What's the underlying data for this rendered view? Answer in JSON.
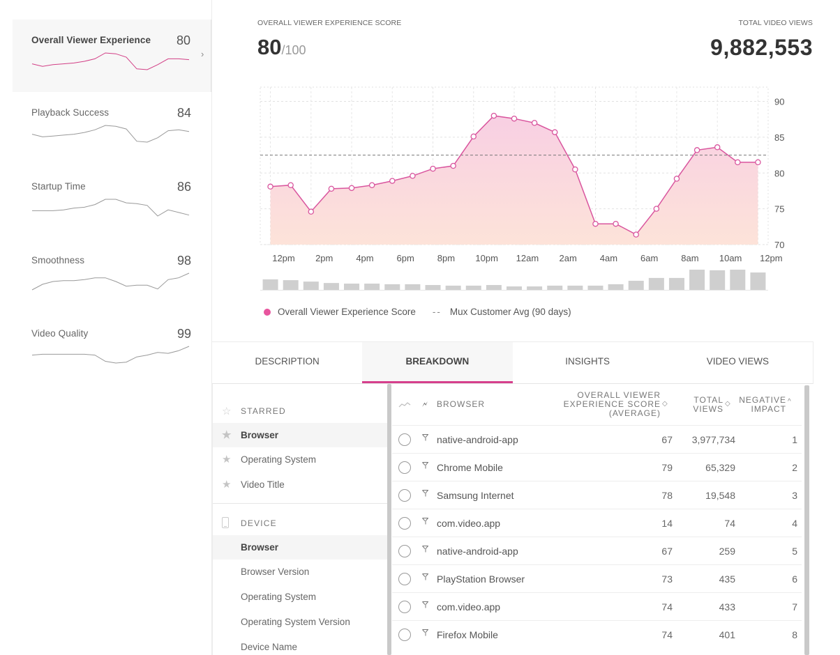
{
  "sidebar": {
    "metrics": [
      {
        "label": "Overall Viewer Experience",
        "value": "80",
        "active": true,
        "trend": [
          12,
          9,
          11,
          12,
          13,
          15,
          18,
          25,
          24,
          20,
          6,
          5,
          11,
          18,
          18,
          17
        ]
      },
      {
        "label": "Playback Success",
        "value": "84",
        "active": false,
        "trend": [
          14,
          11,
          12,
          13,
          14,
          16,
          19,
          24,
          23,
          20,
          6,
          5,
          10,
          18,
          19,
          17
        ]
      },
      {
        "label": "Startup Time",
        "value": "86",
        "active": false,
        "trend": [
          15,
          15,
          15,
          16,
          18,
          19,
          22,
          28,
          28,
          24,
          23,
          21,
          9,
          16,
          13,
          10
        ]
      },
      {
        "label": "Smoothness",
        "value": "98",
        "active": false,
        "trend": [
          4,
          10,
          13,
          14,
          14,
          15,
          17,
          17,
          13,
          8,
          9,
          9,
          5,
          15,
          17,
          22
        ]
      },
      {
        "label": "Video Quality",
        "value": "99",
        "active": false,
        "trend": [
          12,
          13,
          13,
          13,
          13,
          13,
          12,
          5,
          3,
          4,
          10,
          12,
          15,
          14,
          17,
          22
        ]
      }
    ],
    "chevron_icon": "chevron-right-icon"
  },
  "header": {
    "score_label": "OVERALL VIEWER EXPERIENCE SCORE",
    "score_value": "80",
    "score_max": "/100",
    "views_label": "TOTAL VIDEO VIEWS",
    "views_value": "9,882,553"
  },
  "colors": {
    "accent": "#d63f8c",
    "line": "#d9559e",
    "legend_dot": "#e8559e",
    "area_top": "#f8cfe3",
    "area_bottom": "#fde3d9",
    "bars": "#cfcfcf"
  },
  "chart_data": {
    "type": "area",
    "title": "Overall Viewer Experience Score",
    "xlabel": "",
    "ylabel": "",
    "ylim": [
      70,
      92
    ],
    "yticks": [
      70,
      75,
      80,
      85,
      90
    ],
    "x_tick_labels": [
      "12pm",
      "2pm",
      "4pm",
      "6pm",
      "8pm",
      "10pm",
      "12am",
      "2am",
      "4am",
      "6am",
      "8am",
      "10am",
      "12pm"
    ],
    "grid": true,
    "series": [
      {
        "name": "Overall Viewer Experience Score",
        "values": [
          78.1,
          78.3,
          74.6,
          77.8,
          77.9,
          78.3,
          78.9,
          79.6,
          80.6,
          81.0,
          85.1,
          88.0,
          87.6,
          87.0,
          85.7,
          80.5,
          72.9,
          72.9,
          71.4,
          75.0,
          79.2,
          83.2,
          83.6,
          81.5,
          81.5
        ]
      }
    ],
    "reference_line": {
      "name": "Mux Customer Avg (90 days)",
      "value": 82.5,
      "style": "dashed"
    },
    "views_volume_relative": [
      0.52,
      0.48,
      0.41,
      0.34,
      0.31,
      0.31,
      0.28,
      0.28,
      0.24,
      0.21,
      0.21,
      0.24,
      0.17,
      0.17,
      0.21,
      0.21,
      0.21,
      0.28,
      0.45,
      0.59,
      0.59,
      1.0,
      0.97,
      1.0,
      0.86
    ],
    "legend": [
      {
        "label": "Overall Viewer Experience Score",
        "marker": "dot"
      },
      {
        "label": "Mux Customer Avg (90 days)",
        "marker": "dash"
      }
    ],
    "legend_position": "bottom-left"
  },
  "legend": {
    "series_label": "Overall Viewer Experience Score",
    "dash_glyph": "--",
    "avg_label": "Mux Customer Avg (90 days)"
  },
  "tabs": [
    {
      "label": "DESCRIPTION",
      "active": false
    },
    {
      "label": "BREAKDOWN",
      "active": true
    },
    {
      "label": "INSIGHTS",
      "active": false
    },
    {
      "label": "VIDEO VIEWS",
      "active": false
    }
  ],
  "dimensions": {
    "starred_header": "STARRED",
    "starred_items": [
      {
        "label": "Browser",
        "selected": true
      },
      {
        "label": "Operating System",
        "selected": false
      },
      {
        "label": "Video Title",
        "selected": false
      }
    ],
    "device_header": "DEVICE",
    "device_items": [
      {
        "label": "Browser",
        "selected": true
      },
      {
        "label": "Browser Version",
        "selected": false
      },
      {
        "label": "Operating System",
        "selected": false
      },
      {
        "label": "Operating System Version",
        "selected": false
      },
      {
        "label": "Device Name",
        "selected": false
      }
    ]
  },
  "table": {
    "columns": {
      "name": "BROWSER",
      "score_lines": [
        "OVERALL VIEWER",
        "EXPERIENCE SCORE",
        "(AVERAGE)"
      ],
      "views_lines": [
        "TOTAL",
        "VIEWS"
      ],
      "impact_lines": [
        "NEGATIVE",
        "IMPACT"
      ],
      "sort_icon": "◇",
      "sort_asc_icon": "^"
    },
    "rows": [
      {
        "name": "native-android-app",
        "score": "67",
        "views": "3,977,734",
        "impact": "1"
      },
      {
        "name": "Chrome Mobile",
        "score": "79",
        "views": "65,329",
        "impact": "2"
      },
      {
        "name": "Samsung Internet",
        "score": "78",
        "views": "19,548",
        "impact": "3"
      },
      {
        "name": "com.video.app",
        "score": "14",
        "views": "74",
        "impact": "4"
      },
      {
        "name": "native-android-app",
        "score": "67",
        "views": "259",
        "impact": "5"
      },
      {
        "name": "PlayStation Browser",
        "score": "73",
        "views": "435",
        "impact": "6"
      },
      {
        "name": "com.video.app",
        "score": "74",
        "views": "433",
        "impact": "7"
      },
      {
        "name": "Firefox Mobile",
        "score": "74",
        "views": "401",
        "impact": "8"
      }
    ]
  }
}
